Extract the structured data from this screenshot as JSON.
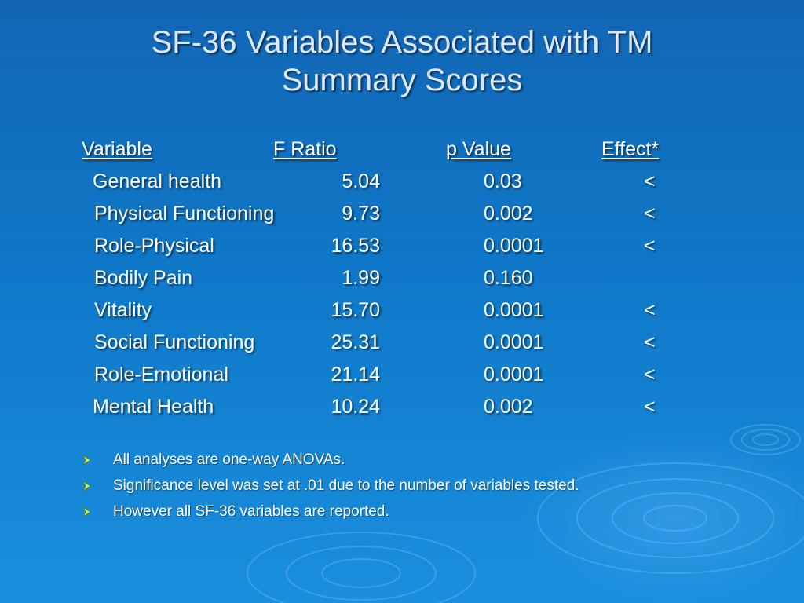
{
  "title": {
    "line1": "SF-36 Variables Associated with TM",
    "line2": "Summary Scores"
  },
  "table": {
    "headers": {
      "variable": "Variable",
      "f_ratio": "F Ratio",
      "p_value": "p Value",
      "effect": "Effect*"
    },
    "rows": [
      {
        "variable": "General health",
        "f_ratio": "5.04",
        "p_value": "0.03",
        "effect": "<"
      },
      {
        "variable": "Physical Functioning",
        "f_ratio": "9.73",
        "p_value": "0.002",
        "effect": "<"
      },
      {
        "variable": "Role-Physical",
        "f_ratio": "16.53",
        "p_value": "0.0001",
        "effect": "<"
      },
      {
        "variable": "Bodily Pain",
        "f_ratio": "1.99",
        "p_value": "0.160",
        "effect": ""
      },
      {
        "variable": "Vitality",
        "f_ratio": "15.70",
        "p_value": "0.0001",
        "effect": "<"
      },
      {
        "variable": "Social Functioning",
        "f_ratio": "25.31",
        "p_value": "0.0001",
        "effect": "<"
      },
      {
        "variable": "Role-Emotional",
        "f_ratio": "21.14",
        "p_value": "0.0001",
        "effect": "<"
      },
      {
        "variable": "Mental Health",
        "f_ratio": "10.24",
        "p_value": "0.002",
        "effect": "<"
      }
    ]
  },
  "bullets": [
    "All analyses are one-way ANOVAs.",
    "Significance level was set at .01 due to the number of variables tested.",
    "However all SF-36 variables are reported."
  ],
  "icons": {
    "bullet": "arrow-bullet-icon",
    "background": "water-ripple-decoration"
  },
  "colors": {
    "background_top": "#1266b4",
    "background_bottom": "#1a8fdd",
    "title": "#dde8ff",
    "text": "#ffffff",
    "bullet_arrow": "#c8f060"
  }
}
